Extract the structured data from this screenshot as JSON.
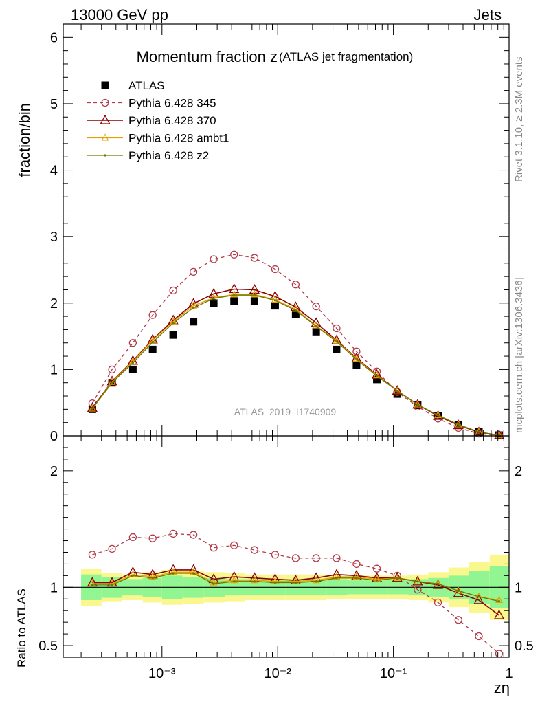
{
  "header": {
    "left": "13000 GeV pp",
    "right": "Jets"
  },
  "side_labels": {
    "rivet": "Rivet 3.1.10, ≥ 2.3M events",
    "mcplots": "mcplots.cern.ch [arXiv:1306.3436]"
  },
  "chart_data": [
    {
      "type": "line",
      "panel": "main",
      "title_main": "Momentum fraction z",
      "title_sub": "(ATLAS jet fragmentation)",
      "ylabel": "fraction/bin",
      "xlabel": "zη",
      "analysis_label": "ATLAS_2019_I1740909",
      "x_scale": "log",
      "xlim": [
        0.00014,
        1.0
      ],
      "ylim": [
        0,
        6.2
      ],
      "y_ticks": [
        0,
        1,
        2,
        3,
        4,
        5,
        6
      ],
      "legend_position": "top-left",
      "x": [
        0.00025,
        0.00037,
        0.00056,
        0.00083,
        0.00125,
        0.00187,
        0.0028,
        0.0042,
        0.0063,
        0.0095,
        0.0143,
        0.0215,
        0.0323,
        0.048,
        0.072,
        0.108,
        0.162,
        0.243,
        0.365,
        0.548,
        0.82
      ],
      "series": [
        {
          "name": "ATLAS",
          "style": "data",
          "values": [
            0.4,
            0.8,
            1.0,
            1.3,
            1.52,
            1.72,
            2.0,
            2.03,
            2.03,
            1.96,
            1.83,
            1.57,
            1.3,
            1.07,
            0.85,
            0.63,
            0.46,
            0.3,
            0.17,
            0.06,
            0.01
          ]
        },
        {
          "name": "Pythia 6.428 345",
          "style": "circle-dashed",
          "color": "#b23a48",
          "values": [
            0.49,
            1.0,
            1.4,
            1.82,
            2.19,
            2.47,
            2.66,
            2.73,
            2.68,
            2.51,
            2.28,
            1.95,
            1.62,
            1.27,
            0.97,
            0.66,
            0.44,
            0.26,
            0.12,
            0.035,
            0.005
          ]
        },
        {
          "name": "Pythia 6.428 370",
          "style": "triangle",
          "color": "#8b0000",
          "values": [
            0.42,
            0.82,
            1.13,
            1.45,
            1.74,
            1.99,
            2.14,
            2.21,
            2.2,
            2.1,
            1.94,
            1.7,
            1.44,
            1.17,
            0.92,
            0.68,
            0.47,
            0.3,
            0.16,
            0.055,
            0.008
          ]
        },
        {
          "name": "Pythia 6.428 ambt1",
          "style": "triangle-small",
          "color": "#e6a000",
          "values": [
            0.41,
            0.81,
            1.12,
            1.44,
            1.72,
            1.96,
            2.08,
            2.13,
            2.13,
            2.05,
            1.91,
            1.66,
            1.43,
            1.16,
            0.91,
            0.68,
            0.47,
            0.31,
            0.17,
            0.06,
            0.009
          ]
        },
        {
          "name": "Pythia 6.428 z2",
          "style": "dot",
          "color": "#6b7a00",
          "values": [
            0.41,
            0.8,
            1.1,
            1.41,
            1.7,
            1.93,
            2.07,
            2.12,
            2.12,
            2.04,
            1.89,
            1.65,
            1.42,
            1.15,
            0.9,
            0.68,
            0.47,
            0.31,
            0.17,
            0.06,
            0.009
          ]
        }
      ]
    },
    {
      "type": "line",
      "panel": "ratio",
      "ylabel": "Ratio to ATLAS",
      "xlabel": "zη",
      "x_scale": "log",
      "xlim": [
        0.00014,
        1.0
      ],
      "ylim": [
        0.4,
        2.3
      ],
      "y_ticks": [
        0.5,
        1,
        2
      ],
      "x_tick_labels": [
        "10⁻³",
        "10⁻²",
        "10⁻¹",
        "1"
      ],
      "bin_edges": [
        0.0002,
        0.0003,
        0.00045,
        0.00068,
        0.001,
        0.0015,
        0.0023,
        0.0035,
        0.0052,
        0.0078,
        0.0117,
        0.0176,
        0.0264,
        0.04,
        0.06,
        0.09,
        0.135,
        0.2,
        0.3,
        0.45,
        0.68,
        1.0
      ],
      "band_green": [
        0.11,
        0.09,
        0.07,
        0.08,
        0.1,
        0.09,
        0.08,
        0.07,
        0.07,
        0.07,
        0.07,
        0.07,
        0.07,
        0.06,
        0.06,
        0.06,
        0.07,
        0.08,
        0.1,
        0.14,
        0.18
      ],
      "band_yellow": [
        0.16,
        0.12,
        0.11,
        0.13,
        0.15,
        0.14,
        0.13,
        0.12,
        0.11,
        0.11,
        0.11,
        0.11,
        0.1,
        0.1,
        0.1,
        0.1,
        0.11,
        0.13,
        0.17,
        0.22,
        0.28
      ],
      "x": [
        0.00025,
        0.00037,
        0.00056,
        0.00083,
        0.00125,
        0.00187,
        0.0028,
        0.0042,
        0.0063,
        0.0095,
        0.0143,
        0.0215,
        0.0323,
        0.048,
        0.072,
        0.108,
        0.162,
        0.243,
        0.365,
        0.548,
        0.82
      ],
      "series": [
        {
          "name": "Pythia 6.428 345",
          "style": "circle-dashed",
          "color": "#b23a48",
          "values": [
            1.28,
            1.33,
            1.43,
            1.42,
            1.46,
            1.45,
            1.34,
            1.36,
            1.32,
            1.28,
            1.25,
            1.25,
            1.25,
            1.2,
            1.16,
            1.1,
            0.98,
            0.87,
            0.72,
            0.58,
            0.43
          ]
        },
        {
          "name": "Pythia 6.428 370",
          "style": "triangle",
          "color": "#8b0000",
          "values": [
            1.04,
            1.04,
            1.13,
            1.11,
            1.15,
            1.15,
            1.07,
            1.09,
            1.08,
            1.07,
            1.06,
            1.08,
            1.11,
            1.1,
            1.08,
            1.08,
            1.05,
            1.02,
            0.95,
            0.89,
            0.76
          ]
        },
        {
          "name": "Pythia 6.428 ambt1",
          "style": "triangle-small",
          "color": "#e6a000",
          "values": [
            1.03,
            1.03,
            1.11,
            1.09,
            1.13,
            1.13,
            1.04,
            1.06,
            1.06,
            1.05,
            1.05,
            1.06,
            1.09,
            1.09,
            1.07,
            1.08,
            1.05,
            1.03,
            0.97,
            0.92,
            0.89
          ]
        },
        {
          "name": "Pythia 6.428 z2",
          "style": "dot",
          "color": "#6b7a00",
          "values": [
            1.02,
            1.02,
            1.1,
            1.08,
            1.12,
            1.12,
            1.03,
            1.05,
            1.05,
            1.04,
            1.04,
            1.05,
            1.08,
            1.08,
            1.06,
            1.08,
            1.05,
            1.03,
            0.97,
            0.92,
            0.88
          ]
        }
      ]
    }
  ]
}
